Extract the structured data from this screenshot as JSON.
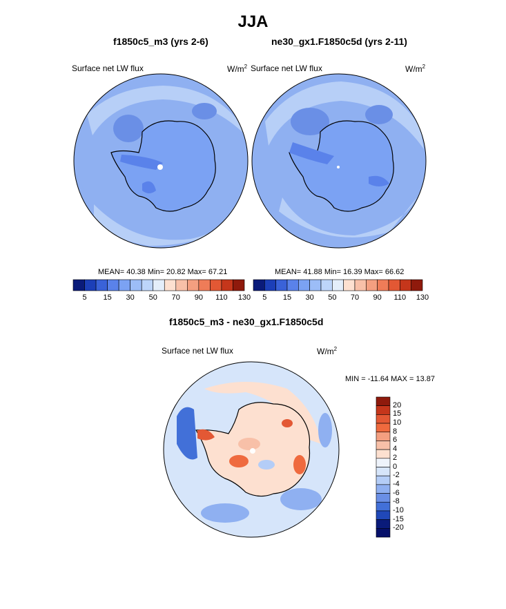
{
  "title": "JJA",
  "panels": [
    {
      "subtitle": "f1850c5_m3 (yrs 2-6)",
      "variable": "Surface net LW flux",
      "unit_base": "W/m",
      "unit_sup": "2",
      "stats": "MEAN=  40.38  Min=  20.82  Max=  67.21"
    },
    {
      "subtitle": "ne30_gx1.F1850c5d (yrs 2-11)",
      "variable": "Surface net LW flux",
      "unit_base": "W/m",
      "unit_sup": "2",
      "stats": "MEAN=  41.88  Min=  16.39  Max=  66.62"
    }
  ],
  "diff_panel": {
    "subtitle": "f1850c5_m3 - ne30_gx1.F1850c5d",
    "variable": "Surface net LW flux",
    "unit_base": "W/m",
    "unit_sup": "2",
    "stats": "MIN = -11.64 MAX =  13.87"
  },
  "colorbar_top": {
    "tick_labels": [
      "5",
      "15",
      "30",
      "50",
      "70",
      "90",
      "110",
      "130"
    ],
    "colors": [
      "#0a1b7a",
      "#1c3fb8",
      "#3a62d8",
      "#5a82ea",
      "#7ba2f3",
      "#9cbdf7",
      "#bdd5fa",
      "#e4eefa",
      "#fde0d0",
      "#f8c0a8",
      "#f49f80",
      "#ef7c58",
      "#e35834",
      "#c5361b",
      "#8f1a0c"
    ]
  },
  "colorbar_diff": {
    "levels": [
      "20",
      "15",
      "10",
      "8",
      "6",
      "4",
      "2",
      "0",
      "-2",
      "-4",
      "-6",
      "-8",
      "-10",
      "-15",
      "-20"
    ],
    "colors": [
      "#8f1a0c",
      "#c5361b",
      "#e35834",
      "#ef6a3e",
      "#f49f80",
      "#f8c0a8",
      "#fde0d0",
      "#eef3fb",
      "#d6e5fa",
      "#b4cdf7",
      "#8fb0f1",
      "#6a8fe6",
      "#4270d8",
      "#2048b8",
      "#0a1b7a",
      "#06106a"
    ]
  },
  "map_colors": {
    "ocean_base": "#8fb0f1",
    "ocean_light": "#b7cff7",
    "ocean_dark": "#6a8fe6",
    "diff_base": "#d6e5fa",
    "diff_warm": "#f8c0a8",
    "diff_hot": "#e35834",
    "diff_cool": "#6a8fe6"
  }
}
